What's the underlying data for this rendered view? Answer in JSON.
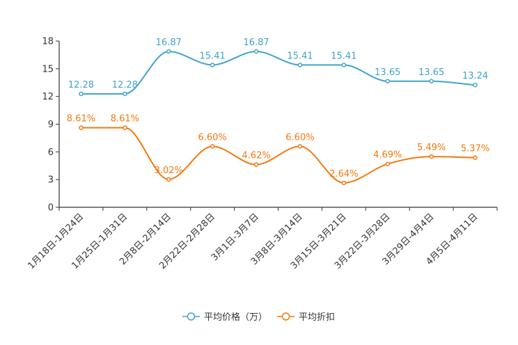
{
  "chart_data": {
    "type": "line",
    "categories": [
      "1月18日-1月24日",
      "1月25日-1月31日",
      "2月8日-2月14日",
      "2月22日-2月28日",
      "3月1日-3月7日",
      "3月8日-3月14日",
      "3月15日-3月21日",
      "3月22日-3月28日",
      "3月29日-4月4日",
      "4月5日-4月11日"
    ],
    "ylim": [
      0,
      18
    ],
    "yticks": [
      0,
      3,
      6,
      9,
      12,
      15,
      18
    ],
    "grid": false,
    "legend_position": "bottom-center",
    "series": [
      {
        "name": "平均价格（万）",
        "color": "#3fa2cf",
        "values": [
          12.28,
          12.28,
          16.87,
          15.41,
          16.87,
          15.41,
          15.41,
          13.65,
          13.65,
          13.24
        ],
        "labels": [
          "12.28",
          "12.28",
          "16.87",
          "15.41",
          "16.87",
          "15.41",
          "15.41",
          "13.65",
          "13.65",
          "13.24"
        ]
      },
      {
        "name": "平均折扣",
        "color": "#f5770c",
        "values": [
          8.61,
          8.61,
          3.02,
          6.6,
          4.62,
          6.6,
          2.64,
          4.69,
          5.49,
          5.37
        ],
        "labels": [
          "8.61%",
          "8.61%",
          "3.02%",
          "6.60%",
          "4.62%",
          "6.60%",
          "2.64%",
          "4.69%",
          "5.49%",
          "5.37%"
        ]
      }
    ]
  }
}
